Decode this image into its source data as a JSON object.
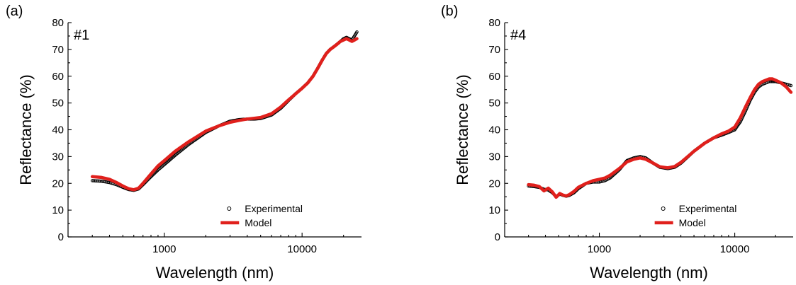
{
  "chart_data": [
    {
      "type": "line",
      "panel_label": "(a)",
      "sample_tag": "#1",
      "xlabel": "Wavelength (nm)",
      "ylabel": "Reflectance (%)",
      "x_scale": "log",
      "xlim": [
        200,
        27000
      ],
      "ylim": [
        0,
        80
      ],
      "x_ticks": [
        1000,
        10000
      ],
      "x_tick_labels": [
        "1000",
        "10000"
      ],
      "y_ticks": [
        0,
        10,
        20,
        30,
        40,
        50,
        60,
        70,
        80
      ],
      "y_tick_labels": [
        "0",
        "10",
        "20",
        "30",
        "40",
        "50",
        "60",
        "70",
        "80"
      ],
      "legend": {
        "position": "bottom-right",
        "entries": [
          "Experimental",
          "Model"
        ]
      },
      "series": [
        {
          "name": "Experimental",
          "style": "scatter",
          "color": "#000000",
          "x": [
            300,
            350,
            400,
            450,
            500,
            550,
            600,
            650,
            700,
            800,
            900,
            1000,
            1200,
            1500,
            2000,
            2500,
            3000,
            3500,
            4000,
            4500,
            5000,
            6000,
            7000,
            8000,
            9000,
            10000,
            11000,
            12000,
            13000,
            14000,
            15000,
            16000,
            17000,
            18000,
            19000,
            20000,
            21000,
            22000,
            23000,
            24000,
            25000
          ],
          "y": [
            21,
            20.8,
            20.3,
            19.5,
            18.5,
            17.7,
            17.4,
            17.9,
            19.5,
            22.5,
            25,
            27,
            30.5,
            34.5,
            39,
            41.5,
            43.2,
            43.8,
            44,
            44,
            44.2,
            45.5,
            48,
            51,
            53.5,
            55.5,
            57.5,
            60,
            63,
            66,
            68.5,
            70,
            71,
            72,
            73,
            74,
            74.5,
            74,
            73.5,
            75,
            76.5
          ]
        },
        {
          "name": "Model",
          "style": "line",
          "color": "#e0201c",
          "x": [
            300,
            350,
            400,
            450,
            500,
            550,
            600,
            650,
            700,
            800,
            900,
            1000,
            1200,
            1500,
            2000,
            2500,
            3000,
            3500,
            4000,
            4500,
            5000,
            6000,
            7000,
            8000,
            9000,
            10000,
            11000,
            12000,
            13000,
            14000,
            15000,
            16000,
            17000,
            18000,
            19000,
            20000,
            21000,
            22000,
            23000,
            24000,
            25000
          ],
          "y": [
            22.5,
            22.2,
            21.5,
            20.3,
            19,
            18,
            17.6,
            18.2,
            20,
            23.5,
            26.5,
            28.5,
            32,
            35.5,
            39.5,
            41.5,
            42.8,
            43.5,
            44,
            44.3,
            44.6,
            46,
            48.5,
            51.2,
            53.5,
            55.5,
            57.5,
            60,
            63,
            66,
            68.5,
            70,
            71,
            72,
            73,
            73.5,
            74,
            73.5,
            73,
            73.5,
            74
          ]
        }
      ]
    },
    {
      "type": "line",
      "panel_label": "(b)",
      "sample_tag": "#4",
      "xlabel": "Wavelength (nm)",
      "ylabel": "Reflectance (%)",
      "x_scale": "log",
      "xlim": [
        200,
        27000
      ],
      "ylim": [
        0,
        80
      ],
      "x_ticks": [
        1000,
        10000
      ],
      "x_tick_labels": [
        "1000",
        "10000"
      ],
      "y_ticks": [
        0,
        10,
        20,
        30,
        40,
        50,
        60,
        70,
        80
      ],
      "y_tick_labels": [
        "0",
        "10",
        "20",
        "30",
        "40",
        "50",
        "60",
        "70",
        "80"
      ],
      "legend": {
        "position": "bottom-right",
        "entries": [
          "Experimental",
          "Model"
        ]
      },
      "series": [
        {
          "name": "Experimental",
          "style": "scatter",
          "color": "#000000",
          "x": [
            300,
            330,
            360,
            390,
            420,
            450,
            480,
            510,
            540,
            570,
            600,
            650,
            700,
            800,
            900,
            1000,
            1100,
            1200,
            1400,
            1600,
            1800,
            2000,
            2200,
            2500,
            2800,
            3200,
            3600,
            4000,
            5000,
            6000,
            7000,
            8000,
            9000,
            10000,
            11000,
            12000,
            13000,
            14000,
            15000,
            16000,
            17000,
            18000,
            19000,
            20000,
            22000,
            24000,
            26000
          ],
          "y": [
            19,
            18.8,
            18.5,
            17.8,
            17.5,
            16.5,
            15,
            16,
            15.5,
            15.2,
            15.5,
            16.5,
            18,
            20,
            20.5,
            20.5,
            21,
            22,
            25,
            28.5,
            29.5,
            30,
            29.5,
            27.5,
            26,
            25.5,
            26,
            27.5,
            32,
            35,
            37,
            38,
            39,
            40,
            43,
            47,
            51,
            54,
            56,
            57,
            57.5,
            58,
            58,
            58,
            57.5,
            57,
            56.5
          ]
        },
        {
          "name": "Model",
          "style": "line",
          "color": "#e0201c",
          "x": [
            300,
            330,
            360,
            390,
            420,
            450,
            480,
            510,
            540,
            570,
            600,
            650,
            700,
            800,
            900,
            1000,
            1100,
            1200,
            1400,
            1600,
            1800,
            2000,
            2200,
            2500,
            2800,
            3200,
            3600,
            4000,
            5000,
            6000,
            7000,
            8000,
            9000,
            10000,
            11000,
            12000,
            13000,
            14000,
            15000,
            16000,
            17000,
            18000,
            19000,
            20000,
            22000,
            24000,
            26000
          ],
          "y": [
            19.5,
            19.3,
            18.8,
            17.2,
            18.2,
            16.8,
            14.8,
            16.2,
            15.6,
            15.3,
            15.8,
            17,
            18.5,
            20,
            21,
            21.5,
            22,
            23,
            25.5,
            28,
            29,
            29.5,
            29,
            27.5,
            26.2,
            25.8,
            26.3,
            27.8,
            32,
            35,
            37,
            38.5,
            39.5,
            41,
            44.5,
            48.5,
            52,
            55,
            57,
            58,
            58.5,
            59,
            59,
            58.5,
            57.5,
            56,
            54
          ]
        }
      ]
    }
  ]
}
